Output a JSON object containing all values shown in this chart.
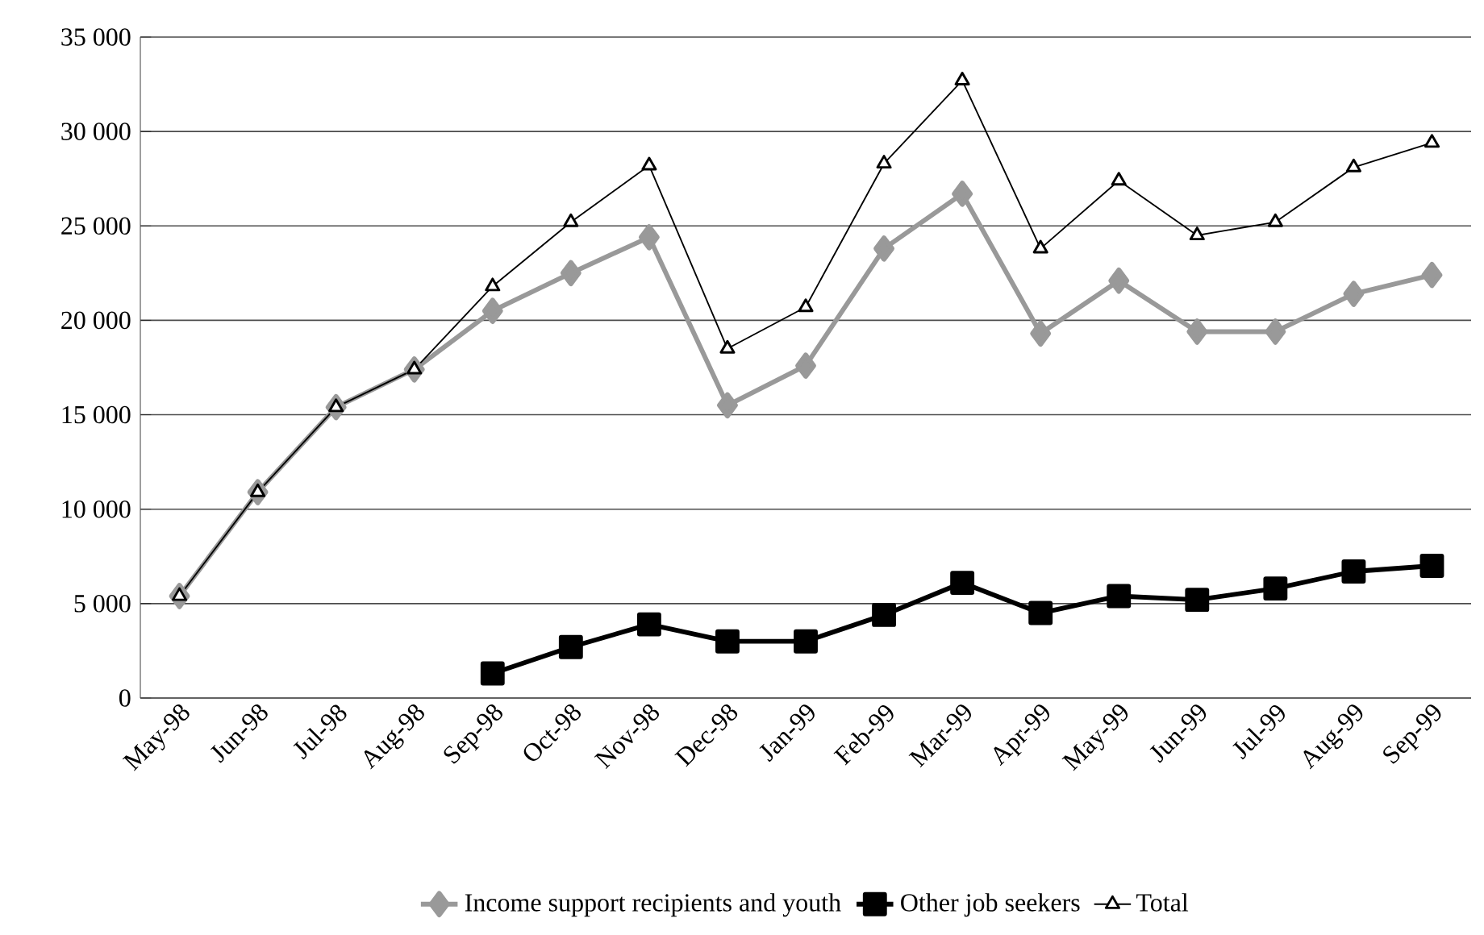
{
  "chart_data": {
    "type": "line",
    "categories": [
      "May-98",
      "Jun-98",
      "Jul-98",
      "Aug-98",
      "Sep-98",
      "Oct-98",
      "Nov-98",
      "Dec-98",
      "Jan-99",
      "Feb-99",
      "Mar-99",
      "Apr-99",
      "May-99",
      "Jun-99",
      "Jul-99",
      "Aug-99",
      "Sep-99"
    ],
    "series": [
      {
        "name": "Income support recipients and youth",
        "color": "#999999",
        "marker": "diamond",
        "values": [
          5400,
          10900,
          15400,
          17400,
          20500,
          22500,
          24400,
          15500,
          17600,
          23800,
          26700,
          19300,
          22100,
          19400,
          19400,
          21400,
          22400
        ]
      },
      {
        "name": "Other job seekers",
        "color": "#000000",
        "marker": "square",
        "values": [
          null,
          null,
          null,
          null,
          1300,
          2700,
          3900,
          3000,
          3000,
          4400,
          6100,
          4500,
          5400,
          5200,
          5800,
          6700,
          7000
        ]
      },
      {
        "name": "Total",
        "color": "#000000",
        "marker": "triangle",
        "values": [
          5400,
          10900,
          15400,
          17400,
          21800,
          25200,
          28200,
          18500,
          20700,
          28300,
          32700,
          23800,
          27400,
          24500,
          25200,
          28100,
          29400
        ]
      }
    ],
    "ylim": [
      0,
      35000
    ],
    "yticks": [
      0,
      {
        "value": 5000,
        "label": "5 000"
      },
      {
        "value": 10000,
        "label": "10 000"
      },
      {
        "value": 15000,
        "label": "15 000"
      },
      {
        "value": 20000,
        "label": "20 000"
      },
      {
        "value": 25000,
        "label": "25 000"
      },
      {
        "value": 30000,
        "label": "30 000"
      },
      {
        "value": 35000,
        "label": "35 000"
      }
    ],
    "grid": "y",
    "legend": "bottom"
  }
}
